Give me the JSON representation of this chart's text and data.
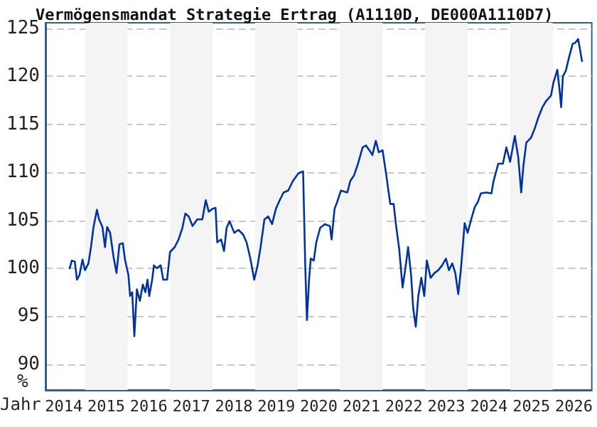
{
  "chart_data": {
    "type": "line",
    "title": "Vermögensmandat Strategie Ertrag (A1110D, DE000A1110D7)",
    "xlabel": "Jahr",
    "ylabel": "%",
    "xlim": [
      2014.07,
      2026.92
    ],
    "xticks": [
      {
        "value": 2014.5,
        "label": "2014"
      },
      {
        "value": 2015.5,
        "label": "2015"
      },
      {
        "value": 2016.5,
        "label": "2016"
      },
      {
        "value": 2017.5,
        "label": "2017"
      },
      {
        "value": 2018.5,
        "label": "2018"
      },
      {
        "value": 2019.5,
        "label": "2019"
      },
      {
        "value": 2020.5,
        "label": "2020"
      },
      {
        "value": 2021.5,
        "label": "2021"
      },
      {
        "value": 2022.5,
        "label": "2022"
      },
      {
        "value": 2023.5,
        "label": "2023"
      },
      {
        "value": 2024.5,
        "label": "2024"
      },
      {
        "value": 2025.5,
        "label": "2025"
      },
      {
        "value": 2026.5,
        "label": "2026"
      }
    ],
    "ylim": [
      87.3,
      125.6
    ],
    "yticks": [
      90,
      95,
      100,
      105,
      110,
      115,
      120,
      125
    ],
    "grid": "y",
    "marker": "none",
    "line_style": "solid",
    "bands": [
      {
        "axis": "x",
        "from": 2015,
        "to": 2016,
        "color": "#f4f4f4"
      },
      {
        "axis": "x",
        "from": 2017,
        "to": 2018,
        "color": "#f4f4f4"
      },
      {
        "axis": "x",
        "from": 2019,
        "to": 2020,
        "color": "#f4f4f4"
      },
      {
        "axis": "x",
        "from": 2021,
        "to": 2022,
        "color": "#f4f4f4"
      },
      {
        "axis": "x",
        "from": 2023,
        "to": 2024,
        "color": "#f4f4f4"
      },
      {
        "axis": "x",
        "from": 2025,
        "to": 2026,
        "color": "#f4f4f4"
      }
    ],
    "series": [
      {
        "color": "#0033a0",
        "x": [
          2014.64,
          2014.69,
          2014.76,
          2014.81,
          2014.87,
          2014.94,
          2015.0,
          2015.08,
          2015.14,
          2015.2,
          2015.28,
          2015.33,
          2015.41,
          2015.47,
          2015.52,
          2015.59,
          2015.67,
          2015.74,
          2015.81,
          2015.89,
          2015.94,
          2016.02,
          2016.06,
          2016.11,
          2016.16,
          2016.22,
          2016.29,
          2016.36,
          2016.42,
          2016.47,
          2016.51,
          2016.58,
          2016.62,
          2016.69,
          2016.78,
          2016.84,
          2016.93,
          2017.0,
          2017.11,
          2017.2,
          2017.29,
          2017.36,
          2017.44,
          2017.53,
          2017.64,
          2017.76,
          2017.84,
          2017.91,
          2018.0,
          2018.07,
          2018.11,
          2018.2,
          2018.27,
          2018.33,
          2018.4,
          2018.51,
          2018.61,
          2018.72,
          2018.8,
          2018.89,
          2018.98,
          2019.06,
          2019.13,
          2019.22,
          2019.31,
          2019.4,
          2019.49,
          2019.58,
          2019.67,
          2019.78,
          2019.89,
          2020.02,
          2020.13,
          2020.18,
          2020.22,
          2020.27,
          2020.31,
          2020.38,
          2020.44,
          2020.53,
          2020.64,
          2020.76,
          2020.8,
          2020.87,
          2020.93,
          2021.02,
          2021.17,
          2021.24,
          2021.33,
          2021.42,
          2021.53,
          2021.61,
          2021.69,
          2021.76,
          2021.84,
          2021.91,
          2022.0,
          2022.09,
          2022.18,
          2022.26,
          2022.31,
          2022.39,
          2022.47,
          2022.53,
          2022.6,
          2022.67,
          2022.72,
          2022.78,
          2022.84,
          2022.91,
          2022.98,
          2023.04,
          2023.13,
          2023.22,
          2023.31,
          2023.4,
          2023.49,
          2023.56,
          2023.64,
          2023.71,
          2023.78,
          2023.84,
          2023.93,
          2024.0,
          2024.09,
          2024.17,
          2024.24,
          2024.31,
          2024.44,
          2024.56,
          2024.61,
          2024.72,
          2024.83,
          2024.91,
          2025.0,
          2025.11,
          2025.19,
          2025.26,
          2025.31,
          2025.38,
          2025.49,
          2025.58,
          2025.67,
          2025.76,
          2025.84,
          2025.96,
          2026.02,
          2026.11,
          2026.16,
          2026.2,
          2026.24,
          2026.31,
          2026.38,
          2026.47,
          2026.53,
          2026.6,
          2026.64,
          2026.69
        ],
        "values": [
          100.0,
          100.8,
          100.7,
          98.8,
          99.3,
          100.9,
          99.8,
          100.5,
          102.2,
          104.3,
          106.1,
          105.1,
          104.3,
          102.2,
          104.3,
          103.7,
          101.2,
          99.5,
          102.5,
          102.6,
          100.9,
          99.3,
          97.1,
          97.5,
          92.9,
          97.8,
          96.6,
          98.3,
          97.5,
          98.8,
          97.1,
          98.8,
          100.3,
          100.0,
          100.3,
          98.8,
          98.8,
          101.7,
          102.2,
          103.0,
          104.2,
          105.7,
          105.4,
          104.4,
          105.1,
          105.1,
          107.1,
          105.9,
          106.2,
          106.3,
          102.7,
          103.0,
          101.8,
          104.2,
          104.9,
          103.7,
          104.0,
          103.5,
          102.7,
          101.0,
          98.8,
          100.3,
          102.2,
          105.1,
          105.4,
          104.6,
          106.2,
          107.1,
          107.9,
          108.1,
          109.1,
          109.9,
          110.1,
          100.3,
          94.6,
          98.8,
          101.0,
          100.8,
          102.7,
          104.2,
          104.6,
          104.4,
          103.0,
          106.2,
          106.9,
          108.1,
          107.9,
          109.1,
          109.7,
          110.9,
          112.6,
          112.8,
          112.3,
          111.8,
          113.3,
          112.1,
          112.3,
          109.6,
          106.7,
          106.7,
          104.7,
          102.0,
          98.0,
          99.8,
          102.2,
          99.3,
          95.8,
          93.9,
          97.1,
          99.0,
          97.1,
          100.8,
          99.0,
          99.5,
          99.8,
          100.3,
          101.0,
          99.8,
          100.5,
          99.5,
          97.3,
          99.8,
          104.7,
          103.7,
          105.2,
          106.4,
          106.9,
          107.8,
          107.9,
          107.8,
          109.1,
          110.9,
          110.9,
          112.6,
          111.1,
          113.8,
          111.6,
          107.9,
          110.6,
          113.1,
          113.6,
          114.6,
          115.8,
          116.8,
          117.4,
          118.0,
          119.4,
          120.7,
          118.7,
          116.8,
          120.0,
          120.6,
          121.9,
          123.4,
          123.5,
          123.9,
          122.9,
          121.6
        ]
      }
    ]
  }
}
